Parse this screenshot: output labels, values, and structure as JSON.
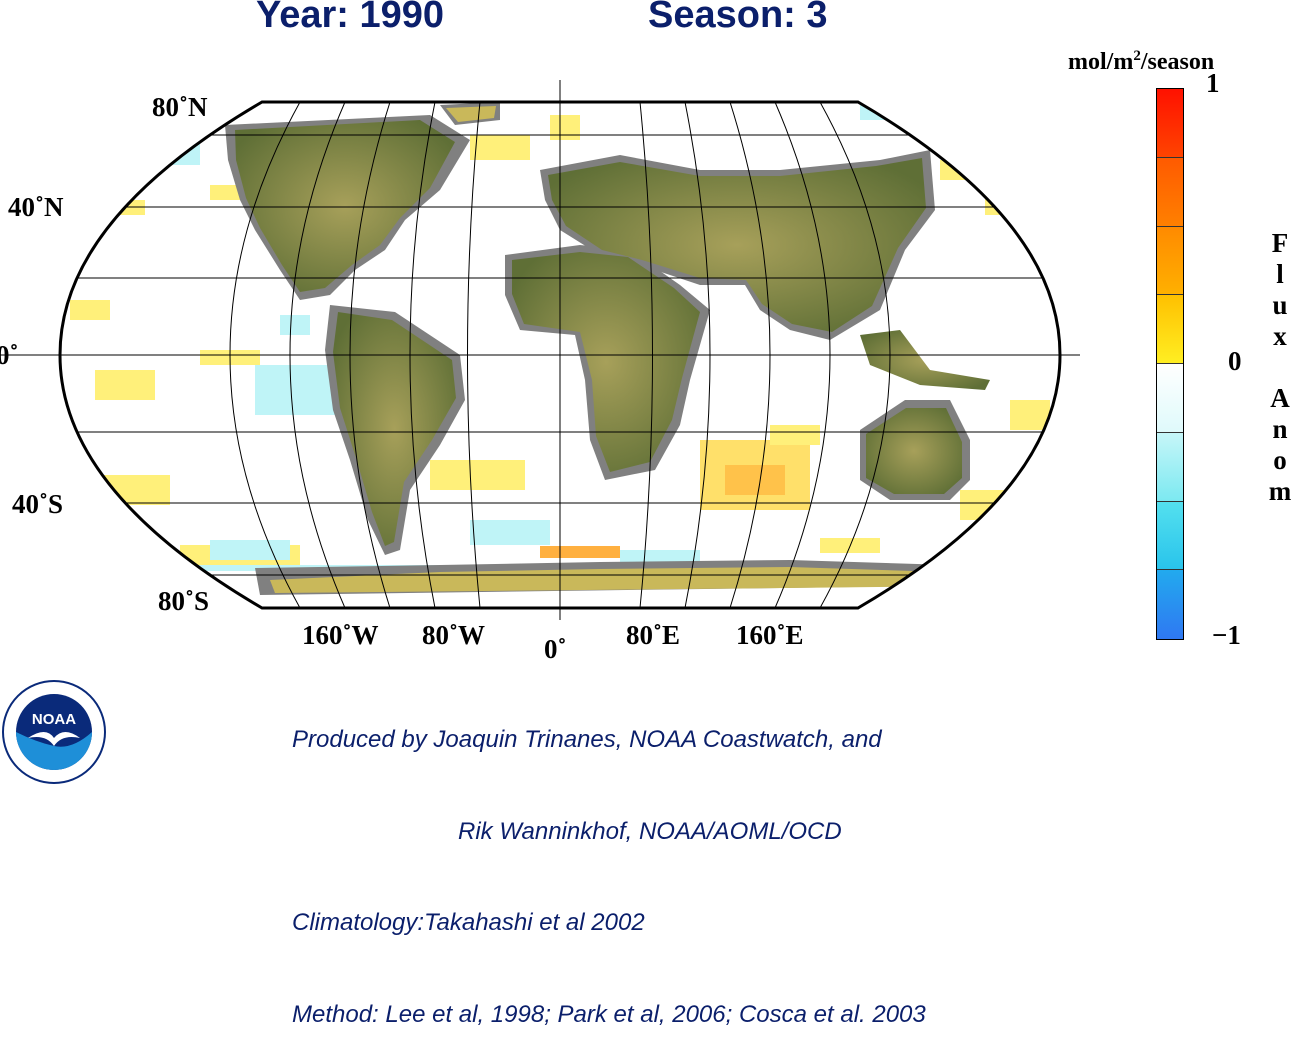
{
  "header": {
    "year_label": "Year: 1990",
    "season_label": "Season: 3"
  },
  "map": {
    "projection": "robinson",
    "lat_labels": [
      "80˚N",
      "40˚N",
      "0˚",
      "40˚S",
      "80˚S"
    ],
    "lon_labels": [
      "160˚W",
      "80˚W",
      "0˚",
      "80˚E",
      "160˚E"
    ],
    "colors": {
      "land": "#6e7a3c",
      "land_mask": "#808080",
      "ocean": "#ffffff",
      "grid": "#000000"
    }
  },
  "legend": {
    "units_main": "mol/m",
    "units_sup": "2",
    "units_rest": "/season",
    "max_label": "1",
    "mid_label": "0",
    "min_label": "−1",
    "title_letters": [
      "F",
      "l",
      "u",
      "x",
      "",
      "A",
      "n",
      "o",
      "m"
    ],
    "colors": [
      "#ff2200",
      "#ff6a00",
      "#ff9d00",
      "#ffe000",
      "#ffffff",
      "#a9f3f6",
      "#40dcec",
      "#1fb0ec",
      "#2f78f2"
    ]
  },
  "credits": {
    "line1": "Produced by Joaquin Trinanes, NOAA Coastwatch, and",
    "line2": "Rik Wanninkhof, NOAA/AOML/OCD",
    "line3": "Climatology:Takahashi et al 2002",
    "line4": "Method: Lee et al, 1998; Park et al, 2006; Cosca et al. 2003"
  },
  "logo": {
    "text": "NOAA"
  }
}
